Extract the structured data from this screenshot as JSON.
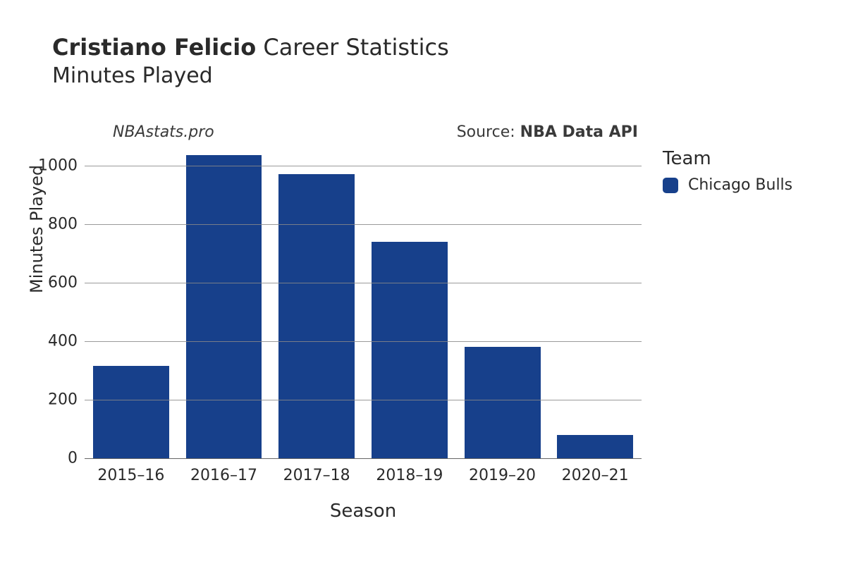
{
  "title": {
    "player_name": "Cristiano Felicio",
    "suffix": " Career Statistics",
    "subtitle": "Minutes Played"
  },
  "annotations": {
    "site": "NBAstats.pro",
    "source_prefix": "Source: ",
    "source_name": "NBA Data API"
  },
  "legend": {
    "title": "Team",
    "items": [
      {
        "label": "Chicago Bulls",
        "color": "#17408b"
      }
    ]
  },
  "chart": {
    "type": "bar",
    "xlabel": "Season",
    "ylabel": "Minutes Played",
    "categories": [
      "2015–16",
      "2016–17",
      "2017–18",
      "2018–19",
      "2019–20",
      "2020–21"
    ],
    "values": [
      315,
      1035,
      970,
      740,
      380,
      80
    ],
    "bar_color": "#17408b",
    "bar_width": 0.82,
    "ylim": [
      0,
      1060
    ],
    "yticks": [
      0,
      200,
      400,
      600,
      800,
      1000
    ],
    "background_color": "#ffffff",
    "grid_color": "#888888",
    "axis_label_fontsize": 24,
    "tick_fontsize": 22,
    "title_fontsize": 32
  }
}
